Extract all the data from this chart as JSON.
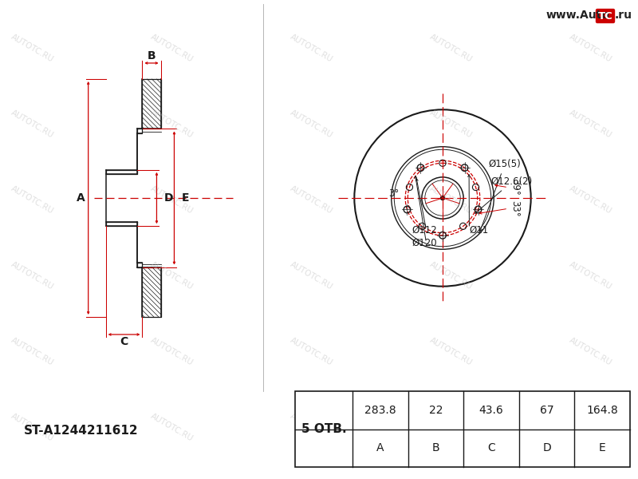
{
  "bg_color": "#ffffff",
  "line_color": "#1a1a1a",
  "red_color": "#cc0000",
  "part_number": "ST-A1244211612",
  "holes_label": "5 ОТВ.",
  "table_headers": [
    "A",
    "B",
    "C",
    "D",
    "E"
  ],
  "table_values": [
    "283.8",
    "22",
    "43.6",
    "67",
    "164.8"
  ],
  "dim_A": 283.8,
  "dim_B": 22,
  "dim_C": 43.6,
  "dim_D": 67,
  "dim_E": 164.8,
  "bolt_circle_112": 112,
  "bolt_circle_120": 120,
  "hole_diameter_11": 11,
  "logo_bg": "#cc0000",
  "website_text": "www.Auto",
  "website_tc": "TC",
  "website_ru": ".ru"
}
